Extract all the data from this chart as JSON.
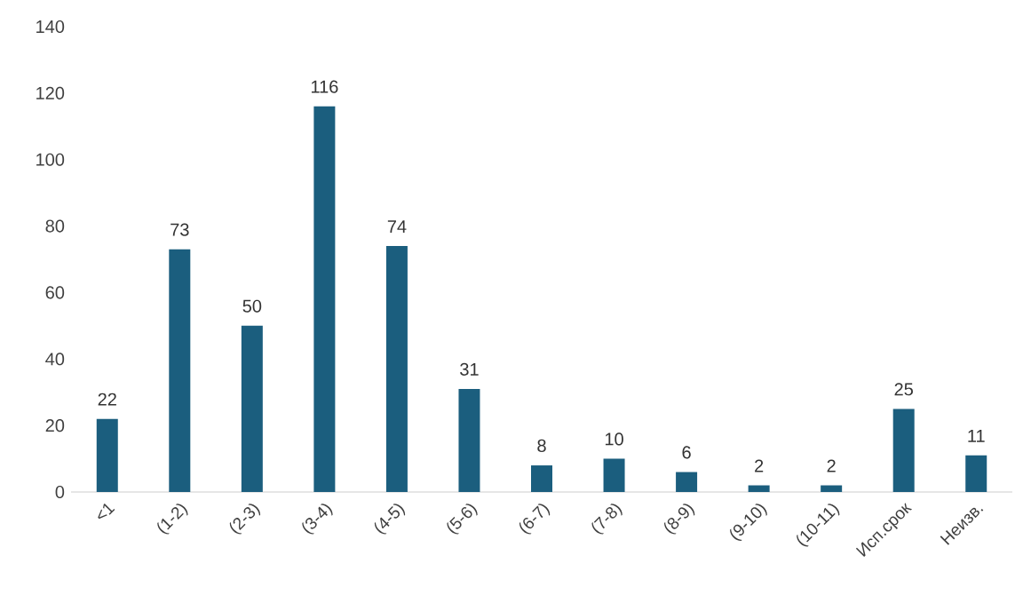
{
  "chart_data": {
    "type": "bar",
    "categories": [
      "<1",
      "(1-2)",
      "(2-3)",
      "(3-4)",
      "(4-5)",
      "(5-6)",
      "(6-7)",
      "(7-8)",
      "(8-9)",
      "(9-10)",
      "(10-11)",
      "Исп.срок",
      "Неизв."
    ],
    "values": [
      22,
      73,
      50,
      116,
      74,
      31,
      8,
      10,
      6,
      2,
      2,
      25,
      11
    ],
    "color": "#1b5e7e",
    "ylim": [
      0,
      140
    ],
    "yticks": [
      0,
      20,
      40,
      60,
      80,
      100,
      120,
      140
    ],
    "data_labels": true
  }
}
